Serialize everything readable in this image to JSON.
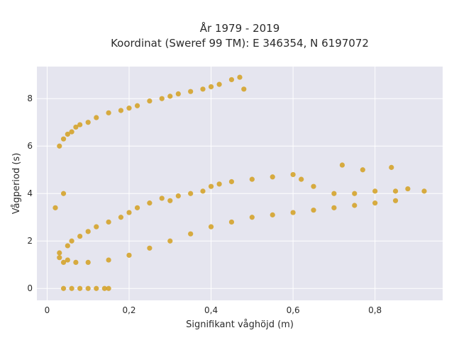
{
  "chart_data": {
    "type": "scatter",
    "title_lines": [
      "År 1979 - 2019",
      "Koordinat (Sweref 99 TM): E 346354, N 6197072"
    ],
    "xlabel": "Signifikant våghöjd (m)",
    "ylabel": "Vågperiod (s)",
    "xlim": [
      -0.025,
      0.965
    ],
    "ylim": [
      -0.5,
      9.35
    ],
    "x_ticks": [
      0,
      0.2,
      0.4,
      0.6,
      0.8
    ],
    "x_tick_labels": [
      "0",
      "0,2",
      "0,4",
      "0,6",
      "0,8"
    ],
    "y_ticks": [
      0,
      2,
      4,
      6,
      8
    ],
    "y_tick_labels": [
      "0",
      "2",
      "4",
      "6",
      "8"
    ],
    "grid": true,
    "colors": {
      "plot_background": "#e5e5ef",
      "grid": "#ffffff",
      "marker": "#d4a020"
    },
    "series": [
      {
        "points": [
          [
            0.03,
            6.0
          ],
          [
            0.04,
            6.3
          ],
          [
            0.05,
            6.5
          ],
          [
            0.06,
            6.6
          ],
          [
            0.07,
            6.8
          ],
          [
            0.08,
            6.9
          ],
          [
            0.1,
            7.0
          ],
          [
            0.12,
            7.2
          ],
          [
            0.15,
            7.4
          ],
          [
            0.18,
            7.5
          ],
          [
            0.2,
            7.6
          ],
          [
            0.22,
            7.7
          ],
          [
            0.25,
            7.9
          ],
          [
            0.28,
            8.0
          ],
          [
            0.3,
            8.1
          ],
          [
            0.32,
            8.2
          ],
          [
            0.35,
            8.3
          ],
          [
            0.38,
            8.4
          ],
          [
            0.4,
            8.5
          ],
          [
            0.42,
            8.6
          ],
          [
            0.45,
            8.8
          ],
          [
            0.47,
            8.9
          ],
          [
            0.48,
            8.4
          ],
          [
            0.03,
            1.3
          ],
          [
            0.04,
            1.1
          ],
          [
            0.05,
            1.8
          ],
          [
            0.06,
            2.0
          ],
          [
            0.08,
            2.2
          ],
          [
            0.1,
            2.4
          ],
          [
            0.12,
            2.6
          ],
          [
            0.15,
            2.8
          ],
          [
            0.18,
            3.0
          ],
          [
            0.2,
            3.2
          ],
          [
            0.22,
            3.4
          ],
          [
            0.25,
            3.6
          ],
          [
            0.28,
            3.8
          ],
          [
            0.3,
            3.7
          ],
          [
            0.32,
            3.9
          ],
          [
            0.35,
            4.0
          ],
          [
            0.38,
            4.1
          ],
          [
            0.4,
            4.3
          ],
          [
            0.42,
            4.4
          ],
          [
            0.45,
            4.5
          ],
          [
            0.5,
            4.6
          ],
          [
            0.55,
            4.7
          ],
          [
            0.6,
            4.8
          ],
          [
            0.62,
            4.6
          ],
          [
            0.65,
            4.3
          ],
          [
            0.7,
            4.0
          ],
          [
            0.75,
            4.0
          ],
          [
            0.8,
            4.1
          ],
          [
            0.85,
            4.1
          ],
          [
            0.88,
            4.2
          ],
          [
            0.92,
            4.1
          ],
          [
            0.04,
            4.0
          ],
          [
            0.02,
            3.4
          ],
          [
            0.03,
            1.5
          ],
          [
            0.05,
            1.2
          ],
          [
            0.07,
            1.1
          ],
          [
            0.1,
            1.1
          ],
          [
            0.15,
            1.2
          ],
          [
            0.2,
            1.4
          ],
          [
            0.25,
            1.7
          ],
          [
            0.3,
            2.0
          ],
          [
            0.35,
            2.3
          ],
          [
            0.4,
            2.6
          ],
          [
            0.45,
            2.8
          ],
          [
            0.5,
            3.0
          ],
          [
            0.55,
            3.1
          ],
          [
            0.6,
            3.2
          ],
          [
            0.65,
            3.3
          ],
          [
            0.7,
            3.4
          ],
          [
            0.75,
            3.5
          ],
          [
            0.8,
            3.6
          ],
          [
            0.85,
            3.7
          ],
          [
            0.04,
            0.0
          ],
          [
            0.06,
            0.0
          ],
          [
            0.08,
            0.0
          ],
          [
            0.1,
            0.0
          ],
          [
            0.12,
            0.0
          ],
          [
            0.14,
            0.0
          ],
          [
            0.15,
            0.0
          ],
          [
            0.72,
            5.2
          ],
          [
            0.84,
            5.1
          ],
          [
            0.77,
            5.0
          ]
        ]
      }
    ]
  }
}
